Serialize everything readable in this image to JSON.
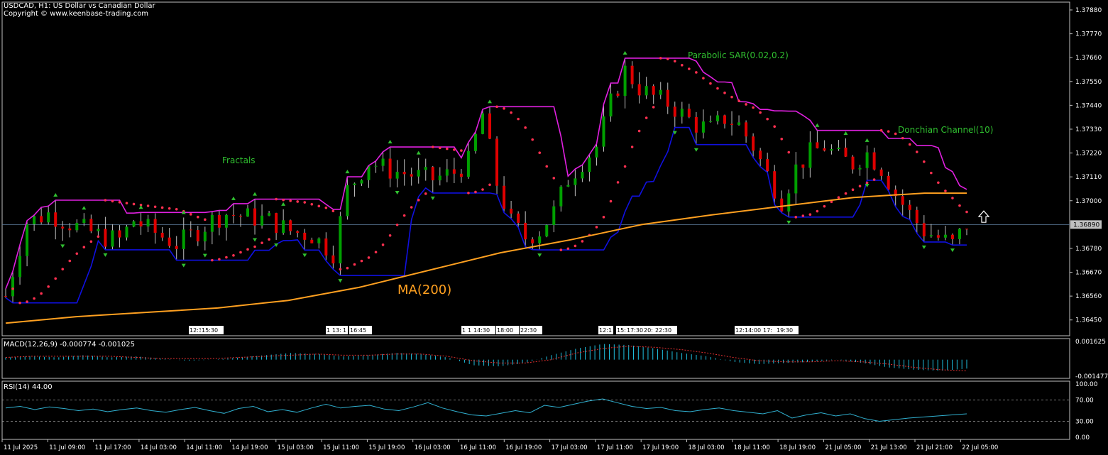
{
  "header": {
    "title": "USDCAD, H1:  US Dollar vs Canadian Dollar",
    "copyright": "Copyright © www.keenbase-trading.com"
  },
  "annotations": {
    "fractals": "Fractals",
    "sar": "Parabolic SAR(0.02,0.2)",
    "donchian": "Donchian Channel(10)",
    "ma": "MA(200)"
  },
  "colors": {
    "background": "#000000",
    "up_candle": "#00a000",
    "down_candle": "#e00000",
    "donchian_upper": "#e020e0",
    "donchian_lower": "#1010e0",
    "sar": "#ff3050",
    "ma": "#ffa020",
    "fractals": "#30c030",
    "macd_hist": "#20c0e0",
    "macd_signal": "#e03030",
    "rsi": "#30b0d0",
    "grid_text": "#ffffff"
  },
  "chart_data": [
    {
      "type": "candlestick",
      "symbol": "USDCAD",
      "timeframe": "H1",
      "ylim": [
        1.364,
        1.3788
      ],
      "price_ticks": [
        "1.37880",
        "1.37770",
        "1.37660",
        "1.37550",
        "1.37440",
        "1.37330",
        "1.37220",
        "1.37110",
        "1.37000",
        "1.36780",
        "1.36670",
        "1.36560",
        "1.36450"
      ],
      "current_price": "1.36890",
      "time_labels": [
        "11 Jul 2025",
        "11 Jul 09:00",
        "11 Jul 17:00",
        "14 Jul 03:00",
        "14 Jul 11:00",
        "14 Jul 19:00",
        "15 Jul 03:00",
        "15 Jul 11:00",
        "15 Jul 19:00",
        "16 Jul 03:00",
        "16 Jul 11:00",
        "16 Jul 19:00",
        "17 Jul 03:00",
        "17 Jul 11:00",
        "17 Jul 19:00",
        "18 Jul 03:00",
        "18 Jul 11:00",
        "18 Jul 19:00",
        "21 Jul 05:00",
        "21 Jul 13:00",
        "21 Jul 21:00",
        "22 Jul 05:00"
      ],
      "event_tags": [
        "12:30",
        "15:30",
        "1",
        "13:",
        "1",
        "16:45",
        "1",
        "1",
        "14:30",
        "18:00",
        "22:30",
        "12:",
        "1",
        "15:",
        "17:30",
        "20:",
        "22:30",
        "12:",
        "14:00",
        "17:",
        "19:30"
      ],
      "ma200": [
        [
          0,
          1.36435
        ],
        [
          100,
          1.36465
        ],
        [
          200,
          1.36485
        ],
        [
          300,
          1.36505
        ],
        [
          400,
          1.3654
        ],
        [
          500,
          1.366
        ],
        [
          600,
          1.3668
        ],
        [
          700,
          1.3676
        ],
        [
          800,
          1.3682
        ],
        [
          900,
          1.3689
        ],
        [
          1000,
          1.36935
        ],
        [
          1100,
          1.36975
        ],
        [
          1200,
          1.37015
        ],
        [
          1300,
          1.37035
        ],
        [
          1360,
          1.37035
        ]
      ]
    },
    {
      "type": "bar",
      "title": "MACD(12,26,9) -0.000774 -0.001025",
      "ylim": [
        -0.001477,
        0.001625
      ],
      "ticks": [
        "0.001625",
        "-0.001477"
      ],
      "histogram": [
        0.0002,
        0.0003,
        0.0002,
        0.0004,
        0.0002,
        0.0003,
        0.0001,
        -0.0001,
        0.0,
        0.0002,
        0.0004,
        0.0006,
        0.0005,
        0.0003,
        0.0004,
        0.0006,
        0.0005,
        0.0002,
        -0.0005,
        -0.0006,
        -0.0003,
        0.0004,
        0.001,
        0.0014,
        0.0013,
        0.001,
        0.0006,
        0.0003,
        -0.0002,
        -0.0004,
        -0.0003,
        -0.0002,
        0.0,
        -0.0003,
        -0.0007,
        -0.0009,
        -0.001,
        -0.0008
      ],
      "signal": [
        0.0002,
        0.0003,
        0.0003,
        0.0003,
        0.0003,
        0.0002,
        0.0001,
        0.0001,
        0.0001,
        0.0002,
        0.0003,
        0.0004,
        0.0005,
        0.0004,
        0.0004,
        0.0005,
        0.0005,
        0.0003,
        -0.0001,
        -0.0003,
        -0.0003,
        0.0,
        0.0006,
        0.001,
        0.0012,
        0.0011,
        0.0009,
        0.0006,
        0.0002,
        -0.0001,
        -0.0002,
        -0.0002,
        -0.0001,
        -0.0002,
        -0.0004,
        -0.0007,
        -0.0009,
        -0.001
      ]
    },
    {
      "type": "line",
      "title": "RSI(14) 44.00",
      "ylim": [
        0,
        100
      ],
      "ticks": [
        "100.00",
        "70.00",
        "30.00",
        "0.00"
      ],
      "levels": [
        70,
        30
      ],
      "values": [
        55,
        58,
        52,
        57,
        54,
        50,
        53,
        48,
        52,
        55,
        50,
        47,
        52,
        56,
        50,
        45,
        54,
        58,
        48,
        52,
        47,
        55,
        62,
        55,
        58,
        60,
        53,
        50,
        57,
        65,
        55,
        48,
        42,
        40,
        45,
        50,
        46,
        60,
        56,
        62,
        68,
        72,
        65,
        58,
        54,
        56,
        50,
        48,
        52,
        55,
        50,
        47,
        44,
        50,
        36,
        42,
        46,
        40,
        44,
        35,
        30,
        33,
        36,
        38,
        40,
        42,
        44
      ]
    }
  ]
}
